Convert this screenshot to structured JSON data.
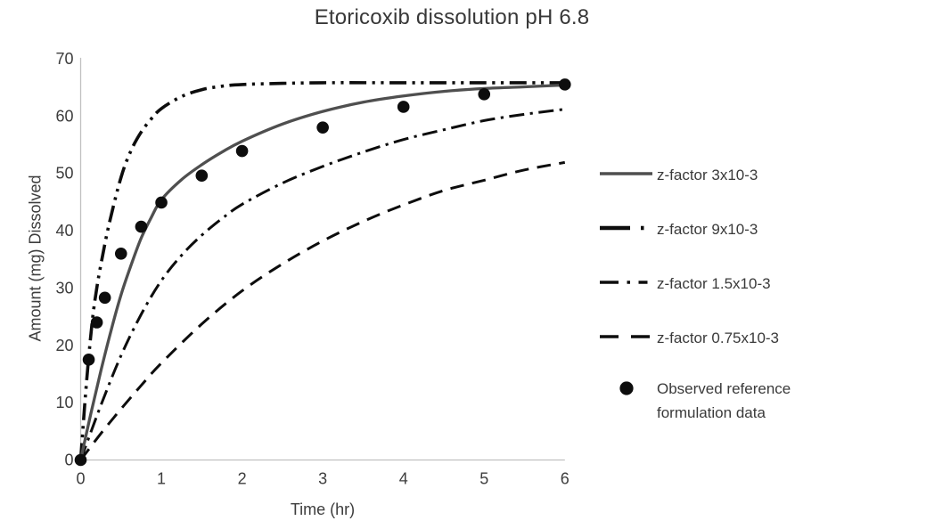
{
  "chart_data": {
    "type": "line",
    "title": "Etoricoxib dissolution pH 6.8",
    "xlabel": "Time (hr)",
    "ylabel": "Amount (mg) Dissolved",
    "xlim": [
      0,
      6
    ],
    "ylim": [
      0,
      70
    ],
    "x_ticks": [
      0,
      1,
      2,
      3,
      4,
      5,
      6
    ],
    "y_ticks": [
      0,
      10,
      20,
      30,
      40,
      50,
      60,
      70
    ],
    "grid": false,
    "legend_position": "right",
    "axis_color": "#c0c0c0",
    "series": [
      {
        "name": "z-factor 0.75x10-3",
        "style": "dash",
        "color": "#0d0d0d",
        "width": 3,
        "points": [
          [
            0,
            0
          ],
          [
            0.25,
            4.6
          ],
          [
            0.5,
            8.9
          ],
          [
            0.75,
            13
          ],
          [
            1,
            16.9
          ],
          [
            1.5,
            23.7
          ],
          [
            2,
            29.5
          ],
          [
            2.5,
            34.2
          ],
          [
            3,
            38.2
          ],
          [
            3.5,
            41.6
          ],
          [
            4,
            44.5
          ],
          [
            4.5,
            47
          ],
          [
            5,
            48.8
          ],
          [
            5.5,
            50.6
          ],
          [
            6,
            51.9
          ]
        ]
      },
      {
        "name": "z-factor 1.5x10-3",
        "style": "dash-dot",
        "color": "#0d0d0d",
        "width": 3,
        "points": [
          [
            0,
            0
          ],
          [
            0.25,
            9.5
          ],
          [
            0.5,
            18.2
          ],
          [
            0.75,
            25.4
          ],
          [
            1,
            31.3
          ],
          [
            1.25,
            35.7
          ],
          [
            1.5,
            39.2
          ],
          [
            1.75,
            42.1
          ],
          [
            2,
            44.6
          ],
          [
            2.5,
            48.3
          ],
          [
            3,
            51.2
          ],
          [
            3.5,
            53.7
          ],
          [
            4,
            55.9
          ],
          [
            4.5,
            57.6
          ],
          [
            5,
            59.2
          ],
          [
            5.5,
            60.3
          ],
          [
            6,
            61.2
          ]
        ]
      },
      {
        "name": "z-factor 9x10-3",
        "style": "long-dash-dot-dot",
        "color": "#0d0d0d",
        "width": 3.6,
        "points": [
          [
            0,
            0
          ],
          [
            0.05,
            9.5
          ],
          [
            0.1,
            18
          ],
          [
            0.15,
            25
          ],
          [
            0.2,
            30
          ],
          [
            0.25,
            34
          ],
          [
            0.35,
            41
          ],
          [
            0.5,
            49.3
          ],
          [
            0.625,
            54
          ],
          [
            0.75,
            57.2
          ],
          [
            0.875,
            59.5
          ],
          [
            1,
            61.3
          ],
          [
            1.25,
            63.4
          ],
          [
            1.5,
            64.6
          ],
          [
            1.75,
            65.2
          ],
          [
            2,
            65.5
          ],
          [
            2.5,
            65.7
          ],
          [
            3,
            65.8
          ],
          [
            4,
            65.8
          ],
          [
            5,
            65.8
          ],
          [
            6,
            65.8
          ]
        ]
      },
      {
        "name": "z-factor 3x10-3",
        "style": "solid",
        "color": "#4f4f4f",
        "width": 3.3,
        "points": [
          [
            0,
            0
          ],
          [
            0.125,
            8
          ],
          [
            0.25,
            15.5
          ],
          [
            0.375,
            22.5
          ],
          [
            0.5,
            28.8
          ],
          [
            0.625,
            34
          ],
          [
            0.75,
            38.7
          ],
          [
            0.875,
            42.3
          ],
          [
            1,
            45.4
          ],
          [
            1.25,
            48.9
          ],
          [
            1.5,
            51.5
          ],
          [
            1.75,
            53.7
          ],
          [
            2,
            55.6
          ],
          [
            2.5,
            58.6
          ],
          [
            3,
            60.8
          ],
          [
            3.5,
            62.4
          ],
          [
            4,
            63.5
          ],
          [
            4.5,
            64.3
          ],
          [
            5,
            64.8
          ],
          [
            5.5,
            65.1
          ],
          [
            6,
            65.4
          ]
        ]
      }
    ],
    "observed": {
      "name": "Observed reference formulation data",
      "marker": "circle",
      "color": "#0d0d0d",
      "marker_radius": 6.8,
      "points": [
        [
          0,
          0
        ],
        [
          0.1,
          17.5
        ],
        [
          0.2,
          24
        ],
        [
          0.3,
          28.3
        ],
        [
          0.5,
          36
        ],
        [
          0.75,
          40.7
        ],
        [
          1,
          44.9
        ],
        [
          1.5,
          49.6
        ],
        [
          2,
          53.9
        ],
        [
          3,
          58
        ],
        [
          4,
          61.6
        ],
        [
          5,
          63.8
        ],
        [
          6,
          65.5
        ]
      ]
    },
    "legend_order": [
      "z-factor 3x10-3",
      "z-factor 9x10-3",
      "z-factor 1.5x10-3",
      "z-factor 0.75x10-3",
      "Observed reference formulation data"
    ]
  }
}
